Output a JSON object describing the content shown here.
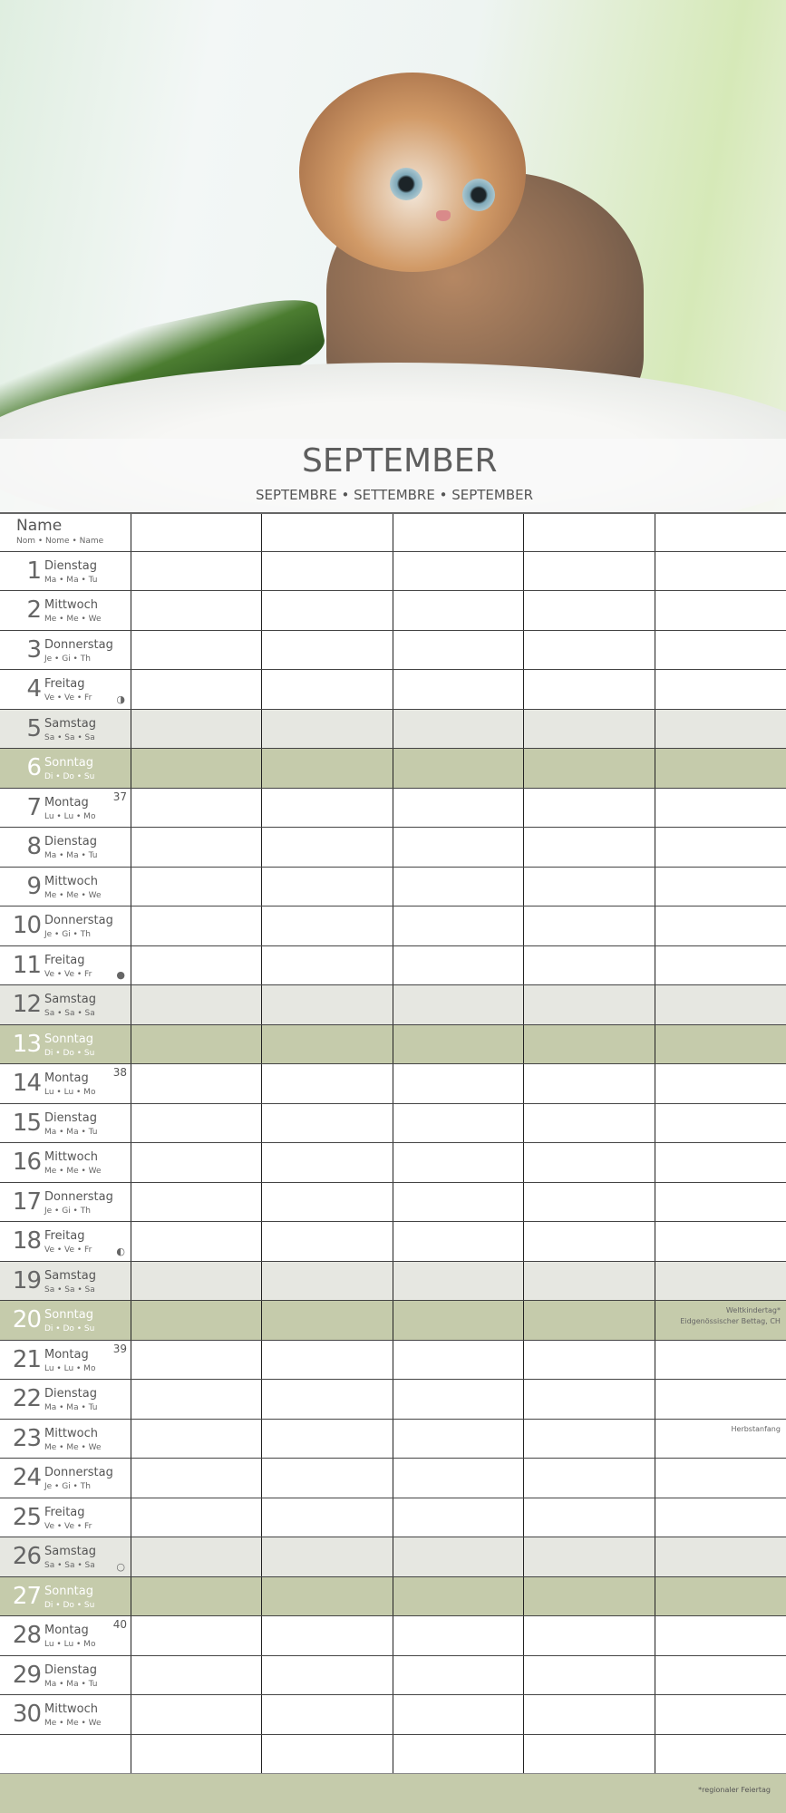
{
  "header": {
    "month": "SEPTEMBER",
    "month_translations": "SEPTEMBRE • SETTEMBRE • SEPTEMBER"
  },
  "colors": {
    "sunday": "#c5cbab",
    "saturday": "#e6e7e1",
    "grid": "#222222",
    "text": "#555555"
  },
  "name_row": {
    "label": "Name",
    "translations": "Nom • Nome • Name"
  },
  "columns": 5,
  "days": [
    {
      "n": "1",
      "name": "Dienstag",
      "abbr": "Ma • Ma • Tu",
      "type": "wd"
    },
    {
      "n": "2",
      "name": "Mittwoch",
      "abbr": "Me • Me • We",
      "type": "wd"
    },
    {
      "n": "3",
      "name": "Donnerstag",
      "abbr": "Je • Gi • Th",
      "type": "wd"
    },
    {
      "n": "4",
      "name": "Freitag",
      "abbr": "Ve • Ve • Fr",
      "type": "wd",
      "moon": "◑"
    },
    {
      "n": "5",
      "name": "Samstag",
      "abbr": "Sa • Sa • Sa",
      "type": "sat"
    },
    {
      "n": "6",
      "name": "Sonntag",
      "abbr": "Di • Do • Su",
      "type": "sun"
    },
    {
      "n": "7",
      "name": "Montag",
      "abbr": "Lu • Lu • Mo",
      "type": "wd",
      "week": "37"
    },
    {
      "n": "8",
      "name": "Dienstag",
      "abbr": "Ma • Ma • Tu",
      "type": "wd"
    },
    {
      "n": "9",
      "name": "Mittwoch",
      "abbr": "Me • Me • We",
      "type": "wd"
    },
    {
      "n": "10",
      "name": "Donnerstag",
      "abbr": "Je • Gi • Th",
      "type": "wd"
    },
    {
      "n": "11",
      "name": "Freitag",
      "abbr": "Ve • Ve • Fr",
      "type": "wd",
      "moon": "●"
    },
    {
      "n": "12",
      "name": "Samstag",
      "abbr": "Sa • Sa • Sa",
      "type": "sat"
    },
    {
      "n": "13",
      "name": "Sonntag",
      "abbr": "Di • Do • Su",
      "type": "sun"
    },
    {
      "n": "14",
      "name": "Montag",
      "abbr": "Lu • Lu • Mo",
      "type": "wd",
      "week": "38"
    },
    {
      "n": "15",
      "name": "Dienstag",
      "abbr": "Ma • Ma • Tu",
      "type": "wd"
    },
    {
      "n": "16",
      "name": "Mittwoch",
      "abbr": "Me • Me • We",
      "type": "wd"
    },
    {
      "n": "17",
      "name": "Donnerstag",
      "abbr": "Je • Gi • Th",
      "type": "wd"
    },
    {
      "n": "18",
      "name": "Freitag",
      "abbr": "Ve • Ve • Fr",
      "type": "wd",
      "moon": "◐"
    },
    {
      "n": "19",
      "name": "Samstag",
      "abbr": "Sa • Sa • Sa",
      "type": "sat"
    },
    {
      "n": "20",
      "name": "Sonntag",
      "abbr": "Di • Do • Su",
      "type": "sun",
      "note": "Weltkindertag*\nEidgenössischer Bettag, CH"
    },
    {
      "n": "21",
      "name": "Montag",
      "abbr": "Lu • Lu • Mo",
      "type": "wd",
      "week": "39"
    },
    {
      "n": "22",
      "name": "Dienstag",
      "abbr": "Ma • Ma • Tu",
      "type": "wd"
    },
    {
      "n": "23",
      "name": "Mittwoch",
      "abbr": "Me • Me • We",
      "type": "wd",
      "note": "Herbstanfang"
    },
    {
      "n": "24",
      "name": "Donnerstag",
      "abbr": "Je • Gi • Th",
      "type": "wd"
    },
    {
      "n": "25",
      "name": "Freitag",
      "abbr": "Ve • Ve • Fr",
      "type": "wd"
    },
    {
      "n": "26",
      "name": "Samstag",
      "abbr": "Sa • Sa • Sa",
      "type": "sat",
      "moon": "○"
    },
    {
      "n": "27",
      "name": "Sonntag",
      "abbr": "Di • Do • Su",
      "type": "sun"
    },
    {
      "n": "28",
      "name": "Montag",
      "abbr": "Lu • Lu • Mo",
      "type": "wd",
      "week": "40"
    },
    {
      "n": "29",
      "name": "Dienstag",
      "abbr": "Ma • Ma • Tu",
      "type": "wd"
    },
    {
      "n": "30",
      "name": "Mittwoch",
      "abbr": "Me • Me • We",
      "type": "wd"
    }
  ],
  "footer": {
    "note": "*regionaler Feiertag"
  }
}
